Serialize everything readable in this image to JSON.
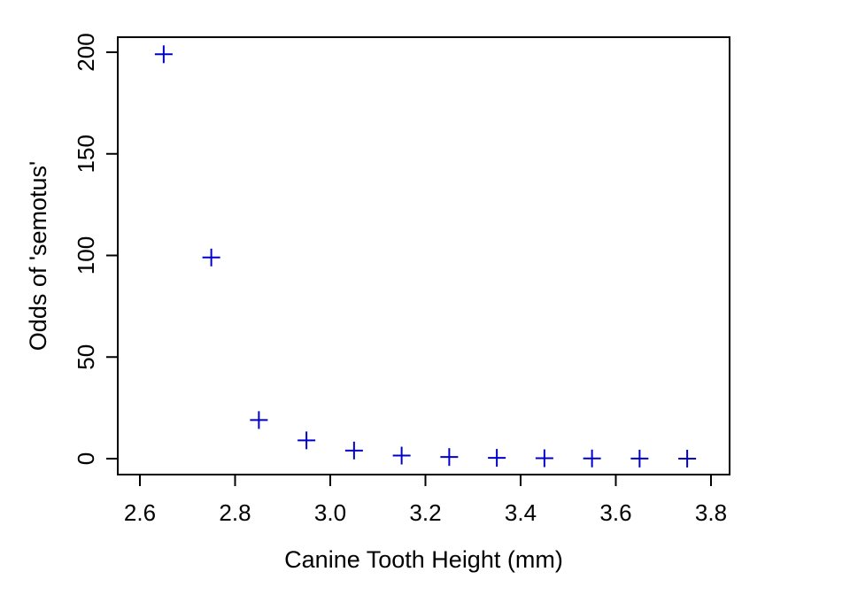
{
  "chart_data": {
    "type": "scatter",
    "title": "",
    "xlabel": "Canine Tooth Height (mm)",
    "ylabel": "Odds of 'semotus'",
    "xlim": [
      2.6,
      3.8
    ],
    "ylim": [
      0,
      200
    ],
    "x_ticks": [
      2.6,
      2.8,
      3.0,
      3.2,
      3.4,
      3.6,
      3.8
    ],
    "x_tick_labels": [
      "2.6",
      "2.8",
      "3.0",
      "3.2",
      "3.4",
      "3.6",
      "3.8"
    ],
    "y_ticks": [
      0,
      50,
      100,
      150,
      200
    ],
    "y_tick_labels": [
      "0",
      "50",
      "100",
      "150",
      "200"
    ],
    "marker": "plus",
    "marker_color": "#0000cc",
    "grid": false,
    "legend": "none",
    "series": [
      {
        "x": [
          2.65,
          2.75,
          2.85,
          2.95,
          3.05,
          3.15,
          3.25,
          3.35,
          3.45,
          3.55,
          3.65,
          3.75
        ],
        "y": [
          199,
          99,
          19,
          9,
          4,
          1.5,
          0.8,
          0.4,
          0.2,
          0.1,
          0.05,
          0.02
        ]
      }
    ]
  }
}
